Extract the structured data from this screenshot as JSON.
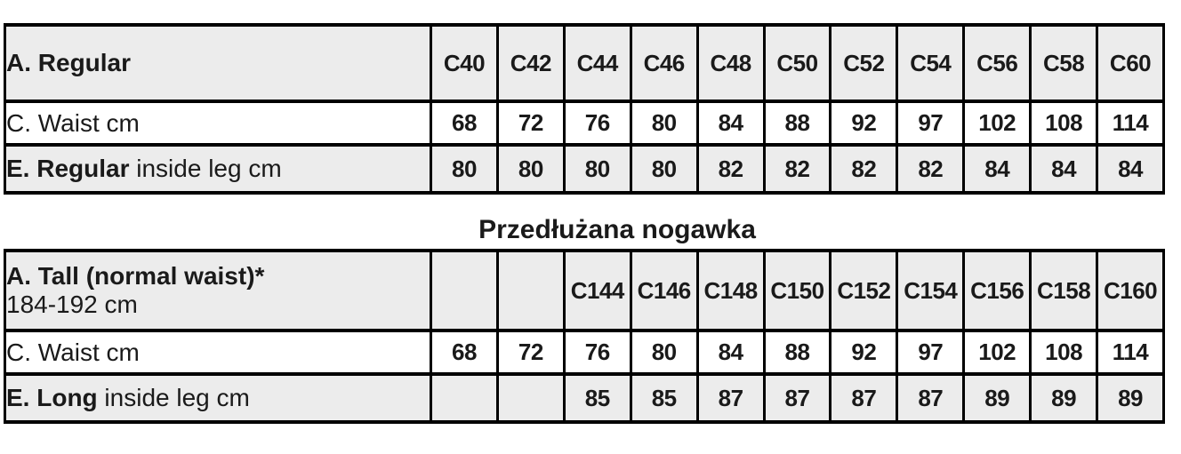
{
  "colors": {
    "border": "#000000",
    "shaded_row": "#ececec",
    "plain_row": "#ffffff",
    "text": "#1a1a1a"
  },
  "regular_table": {
    "title": "A. Regular",
    "size_headers": [
      "C40",
      "C42",
      "C44",
      "C46",
      "C48",
      "C50",
      "C52",
      "C54",
      "C56",
      "C58",
      "C60"
    ],
    "waist_row": {
      "label": "C. Waist cm",
      "values": [
        "68",
        "72",
        "76",
        "80",
        "84",
        "88",
        "92",
        "97",
        "102",
        "108",
        "114"
      ]
    },
    "inside_leg_row": {
      "label_bold": "E. Regular",
      "label_rest": " inside leg cm",
      "values": [
        "80",
        "80",
        "80",
        "80",
        "82",
        "82",
        "82",
        "82",
        "84",
        "84",
        "84"
      ]
    }
  },
  "section_title": "Przedłużana nogawka",
  "tall_table": {
    "title_bold": "A. Tall (normal waist)*",
    "title_sub": "184-192 cm",
    "size_headers": [
      "",
      "",
      "C144",
      "C146",
      "C148",
      "C150",
      "C152",
      "C154",
      "C156",
      "C158",
      "C160"
    ],
    "waist_row": {
      "label": "C. Waist cm",
      "values": [
        "68",
        "72",
        "76",
        "80",
        "84",
        "88",
        "92",
        "97",
        "102",
        "108",
        "114"
      ]
    },
    "inside_leg_row": {
      "label_bold": "E. Long",
      "label_rest": " inside leg cm",
      "values": [
        "",
        "",
        "85",
        "85",
        "87",
        "87",
        "87",
        "87",
        "89",
        "89",
        "89"
      ]
    }
  }
}
